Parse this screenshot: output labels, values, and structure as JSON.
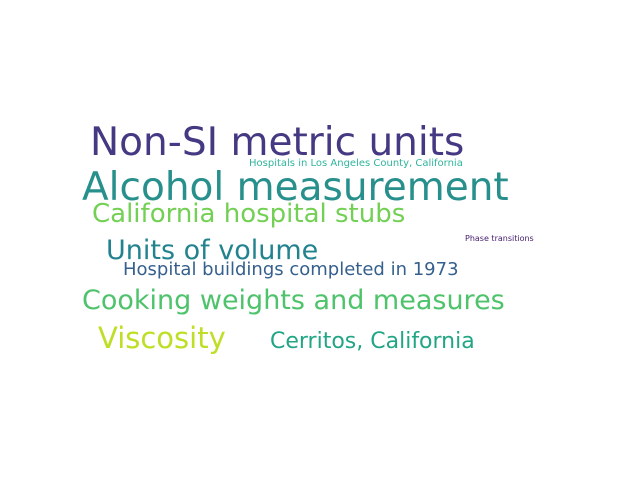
{
  "word_cloud": {
    "words": [
      {
        "text": "Non-SI metric units",
        "color": "#443982"
      },
      {
        "text": "Hospitals in Los Angeles County, California",
        "color": "#2fb49c"
      },
      {
        "text": "Alcohol measurement",
        "color": "#28908c"
      },
      {
        "text": "California hospital stubs",
        "color": "#73d055"
      },
      {
        "text": "Phase transitions",
        "color": "#482071"
      },
      {
        "text": "Units of volume",
        "color": "#22838e"
      },
      {
        "text": "Hospital buildings completed in 1973",
        "color": "#355f8d"
      },
      {
        "text": "Cooking weights and measures",
        "color": "#4ec36b"
      },
      {
        "text": "Viscosity",
        "color": "#bddf26"
      },
      {
        "text": "Cerritos, California",
        "color": "#21a585"
      }
    ]
  }
}
